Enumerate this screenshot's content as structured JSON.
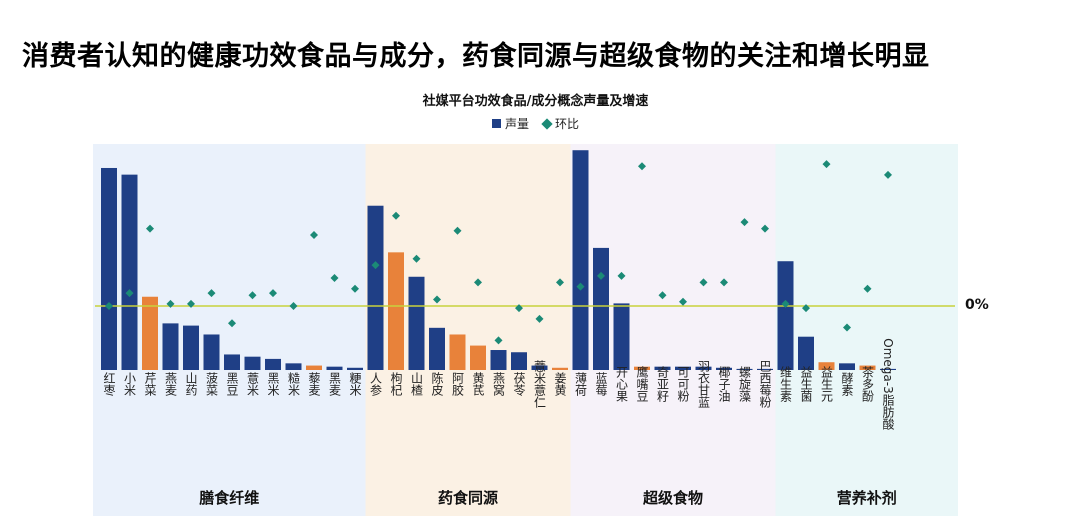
{
  "page_title": "消费者认知的健康功效食品与成分，药食同源与超级食物的关注和增长明显",
  "chart_data": {
    "type": "bar",
    "title": "社媒平台功效食品/成分概念声量及增速",
    "legend": [
      "声量",
      "环比"
    ],
    "legend_placement": "top-center",
    "zero_line_label": "0%",
    "groups": [
      {
        "name": "膳食纤维",
        "color": "#eaf1fb"
      },
      {
        "name": "药食同源",
        "color": "#fbf1e4"
      },
      {
        "name": "超级食物",
        "color": "#f6f2f9"
      },
      {
        "name": "营养补剂",
        "color": "#eaf7f8"
      }
    ],
    "categories": [
      "红枣",
      "小米",
      "芹菜",
      "燕麦",
      "山药",
      "菠菜",
      "黑豆",
      "薏米",
      "黑米",
      "糙米",
      "藜麦",
      "黑麦",
      "粳米",
      "人参",
      "枸杞",
      "山楂",
      "陈皮",
      "阿胶",
      "黄芪",
      "燕窝",
      "茯苓",
      "薏米薏仁",
      "姜黄",
      "薄荷",
      "蓝莓",
      "开心果",
      "鹰嘴豆",
      "奇亚籽",
      "可可粉",
      "羽衣甘蓝",
      "椰子油",
      "螺旋藻",
      "巴西莓粉",
      "维生素",
      "益生菌",
      "益生元",
      "酵素",
      "茶多酚",
      "Omega-3脂肪酸"
    ],
    "category_group": [
      0,
      0,
      0,
      0,
      0,
      0,
      0,
      0,
      0,
      0,
      0,
      0,
      0,
      1,
      1,
      1,
      1,
      1,
      1,
      1,
      1,
      1,
      1,
      2,
      2,
      2,
      2,
      2,
      2,
      2,
      2,
      2,
      2,
      3,
      3,
      3,
      3,
      3,
      3
    ],
    "highlighted": [
      "芹菜",
      "藜麦",
      "枸杞",
      "阿胶",
      "黄芪",
      "姜黄",
      "鹰嘴豆",
      "益生元",
      "茶多酚"
    ],
    "colors": {
      "bar": "#1f3f86",
      "highlight_bar": "#e8823a",
      "growth": "#1b8a76",
      "zero_line": "#c8d23c"
    },
    "series": [
      {
        "name": "声量",
        "type": "bar",
        "values": [
          91,
          88,
          33,
          21,
          20,
          16,
          7,
          6,
          5,
          3,
          2,
          1.5,
          1,
          74,
          53,
          42,
          19,
          16,
          11,
          9,
          8,
          2,
          1,
          99,
          55,
          30,
          1.5,
          1.5,
          1.5,
          1.5,
          1,
          0.5,
          0.5,
          49,
          15,
          3.5,
          3,
          2,
          0.5
        ]
      },
      {
        "name": "环比",
        "type": "scatter",
        "values": [
          0,
          6,
          36,
          1,
          1,
          6,
          -8,
          5,
          6,
          0,
          33,
          13,
          8,
          19,
          42,
          22,
          3,
          35,
          11,
          -16,
          -1,
          -6,
          11,
          9,
          14,
          14,
          65,
          5,
          2,
          11,
          11,
          39,
          36,
          1,
          -1,
          66,
          -10,
          8,
          61
        ]
      }
    ],
    "ylim": [
      0,
      100
    ],
    "y2lim": [
      -40,
      80
    ]
  }
}
